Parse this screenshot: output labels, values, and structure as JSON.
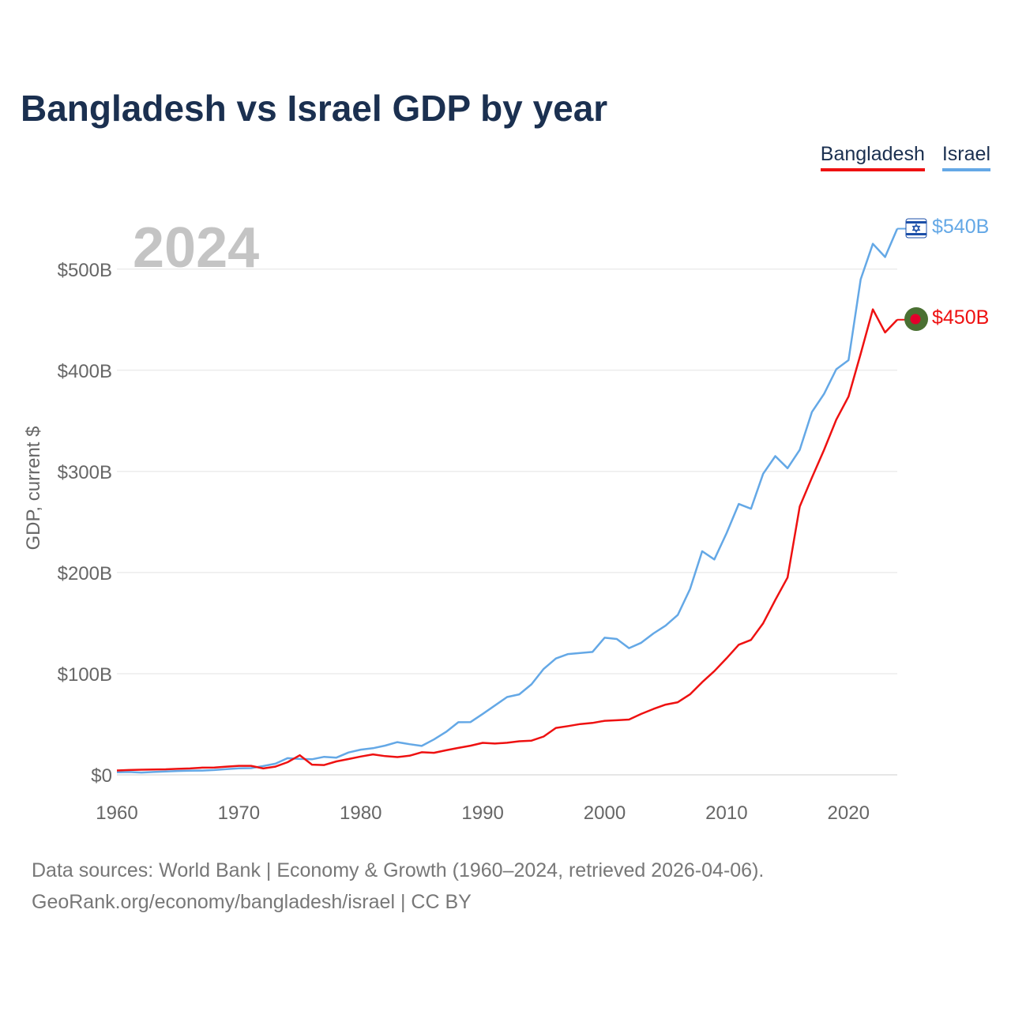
{
  "title": "Bangladesh vs Israel GDP by year",
  "legend": {
    "bangladesh": "Bangladesh",
    "israel": "Israel"
  },
  "year_label": "2024",
  "end_labels": {
    "israel": "$540B",
    "bangladesh": "$450B"
  },
  "footer": {
    "line1": "Data sources: World Bank | Economy & Growth (1960–2024, retrieved 2026-04-06).",
    "line2": "GeoRank.org/economy/bangladesh/israel | CC BY"
  },
  "colors": {
    "bangladesh": "#ee1111",
    "israel": "#64a8e6",
    "title": "#1b3050",
    "grid": "#e3e3e3",
    "axis_text": "#666666",
    "year": "#c4c4c4"
  },
  "chart_data": {
    "type": "line",
    "title": "Bangladesh vs Israel GDP by year",
    "xlabel": "",
    "ylabel": "GDP, current $",
    "xlim": [
      1960,
      2024
    ],
    "ylim": [
      0,
      560
    ],
    "unit": "billion current US$",
    "x_ticks": [
      1960,
      1970,
      1980,
      1990,
      2000,
      2010,
      2020
    ],
    "y_ticks": [
      0,
      100,
      200,
      300,
      400,
      500
    ],
    "y_tick_labels": [
      "$0",
      "$100B",
      "$200B",
      "$300B",
      "$400B",
      "$500B"
    ],
    "x": [
      1960,
      1961,
      1962,
      1963,
      1964,
      1965,
      1966,
      1967,
      1968,
      1969,
      1970,
      1971,
      1972,
      1973,
      1974,
      1975,
      1976,
      1977,
      1978,
      1979,
      1980,
      1981,
      1982,
      1983,
      1984,
      1985,
      1986,
      1987,
      1988,
      1989,
      1990,
      1991,
      1992,
      1993,
      1994,
      1995,
      1996,
      1997,
      1998,
      1999,
      2000,
      2001,
      2002,
      2003,
      2004,
      2005,
      2006,
      2007,
      2008,
      2009,
      2010,
      2011,
      2012,
      2013,
      2014,
      2015,
      2016,
      2017,
      2018,
      2019,
      2020,
      2021,
      2022,
      2023,
      2024
    ],
    "series": [
      {
        "name": "Bangladesh",
        "color": "#ee1111",
        "values": [
          4.3,
          4.8,
          5.1,
          5.3,
          5.5,
          5.9,
          6.3,
          7.1,
          7.2,
          8.1,
          8.9,
          8.9,
          6.3,
          8.1,
          12.5,
          19.4,
          10.1,
          9.7,
          13.3,
          15.6,
          18.1,
          20.2,
          18.5,
          17.6,
          18.9,
          22.3,
          21.8,
          24.3,
          26.6,
          28.8,
          31.6,
          30.9,
          31.7,
          33.2,
          33.8,
          37.9,
          46.4,
          48.2,
          50.2,
          51.3,
          53.4,
          54.0,
          54.7,
          60.2,
          65.1,
          69.4,
          71.8,
          79.6,
          91.6,
          102.5,
          115.3,
          128.6,
          133.4,
          149.9,
          172.9,
          195.1,
          265.2,
          293.8,
          321.4,
          351.2,
          374.0,
          416.3,
          460.2,
          437.4,
          450.0
        ]
      },
      {
        "name": "Israel",
        "color": "#64a8e6",
        "values": [
          2.6,
          2.8,
          2.3,
          2.8,
          3.3,
          3.8,
          4.1,
          4.2,
          4.8,
          5.7,
          6.4,
          6.6,
          8.7,
          11.0,
          16.5,
          15.7,
          15.4,
          17.8,
          17.0,
          22.1,
          24.9,
          26.3,
          28.9,
          32.3,
          30.3,
          28.6,
          35.0,
          42.5,
          52.0,
          52.2,
          60.2,
          68.6,
          76.9,
          79.6,
          89.5,
          104.7,
          115.0,
          119.4,
          120.5,
          121.5,
          135.6,
          134.3,
          125.3,
          130.6,
          139.8,
          147.5,
          158.1,
          183.6,
          221.1,
          213.0,
          239.0,
          267.8,
          263.1,
          297.7,
          315.1,
          303.2,
          321.3,
          358.7,
          376.7,
          401.0,
          410.0,
          490.0,
          525.0,
          512.0,
          540.0
        ]
      }
    ]
  }
}
